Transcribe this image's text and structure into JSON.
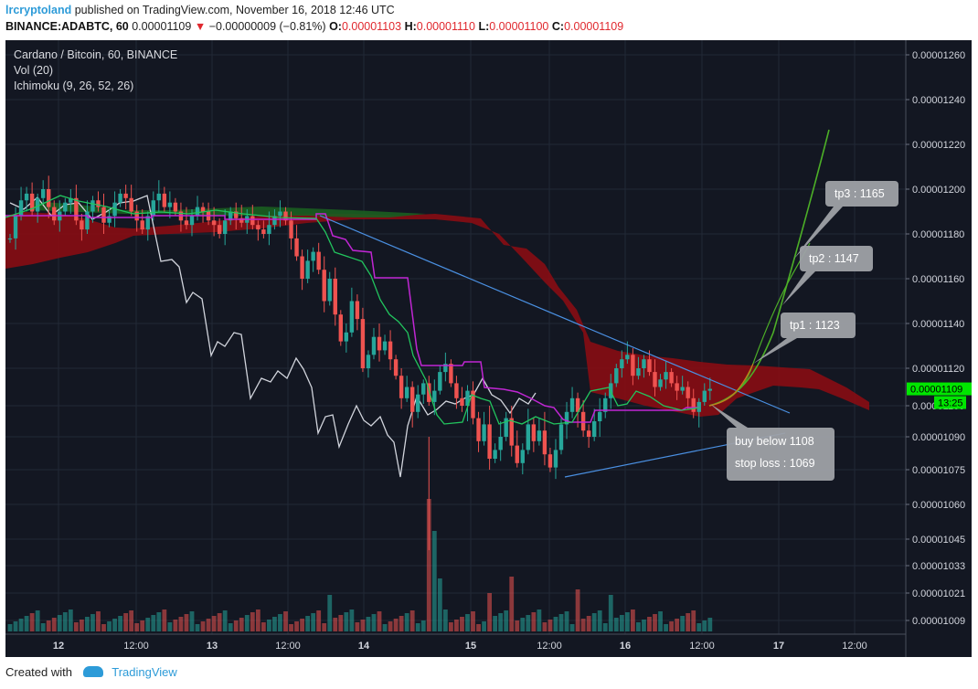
{
  "header": {
    "author": "lrcryptoland",
    "published_text": "published on TradingView.com, November 16, 2018 12:46 UTC",
    "symbol": "BINANCE:ADABTC, 60",
    "last": "0.00001109",
    "change": "−0.00000009 (−0.81%)",
    "o_label": "O:",
    "o_value": "0.00001103",
    "h_label": "H:",
    "h_value": "0.00001110",
    "l_label": "L:",
    "l_value": "0.00001100",
    "c_label": "C:",
    "c_value": "0.00001109"
  },
  "legend": {
    "title": "Cardano / Bitcoin, 60, BINANCE",
    "vol": "Vol (20)",
    "ichimoku": "Ichimoku (9, 26, 52, 26)"
  },
  "footer": {
    "created_with": "Created with",
    "brand": "TradingView"
  },
  "colors": {
    "background": "#131722",
    "up": "#26a69a",
    "down": "#ef5350",
    "kijun": "#c026d3",
    "tenkan": "#22c55e",
    "chikou": "#d1d4dc",
    "kumo_bear": "#8b0d12",
    "kumo_bull": "#1b5e20",
    "trendline": "#4a90e2",
    "projection": "#4caf27",
    "price_label": "#00e600"
  },
  "chart_data": {
    "type": "candlestick",
    "price_scale": {
      "ticks": [
        "0.00001260",
        "0.00001240",
        "0.00001220",
        "0.00001200",
        "0.00001180",
        "0.00001160",
        "0.00001140",
        "0.00001120",
        "0.00001100",
        "0.00001090",
        "0.00001075",
        "0.00001060",
        "0.00001045",
        "0.00001033",
        "0.00001021",
        "0.00001009"
      ],
      "last_price": "0.00001109",
      "countdown": "13:25"
    },
    "time_axis": [
      "12",
      "12:00",
      "13",
      "12:00",
      "14",
      "15",
      "12:00",
      "16",
      "12:00",
      "17",
      "12:00"
    ],
    "close_series": [
      1178,
      1188,
      1195,
      1198,
      1190,
      1196,
      1200,
      1192,
      1186,
      1190,
      1194,
      1196,
      1186,
      1182,
      1190,
      1195,
      1192,
      1185,
      1188,
      1194,
      1198,
      1196,
      1190,
      1186,
      1182,
      1188,
      1195,
      1198,
      1192,
      1194,
      1190,
      1186,
      1184,
      1188,
      1192,
      1190,
      1186,
      1184,
      1180,
      1186,
      1190,
      1187,
      1185,
      1188,
      1184,
      1182,
      1180,
      1184,
      1188,
      1190,
      1186,
      1178,
      1170,
      1160,
      1168,
      1172,
      1164,
      1150,
      1160,
      1144,
      1132,
      1136,
      1150,
      1142,
      1120,
      1126,
      1134,
      1128,
      1132,
      1124,
      1116,
      1104,
      1110,
      1098,
      1106,
      1112,
      1102,
      1108,
      1118,
      1122,
      1112,
      1104,
      1100,
      1108,
      1096,
      1088,
      1094,
      1080,
      1084,
      1090,
      1096,
      1086,
      1078,
      1084,
      1094,
      1088,
      1092,
      1082,
      1076,
      1084,
      1094,
      1098,
      1104,
      1098,
      1092,
      1090,
      1095,
      1098,
      1104,
      1112,
      1120,
      1124,
      1126,
      1116,
      1120,
      1124,
      1118,
      1110,
      1114,
      1118,
      1112,
      1108,
      1110,
      1104,
      1098,
      1102,
      1108,
      1109
    ],
    "annotations": [
      {
        "label": "tp3 : 1165"
      },
      {
        "label": "tp2 : 1147"
      },
      {
        "label": "tp1 : 1123"
      },
      {
        "label": "buy below 1108"
      },
      {
        "label": "stop loss : 1069"
      }
    ]
  }
}
